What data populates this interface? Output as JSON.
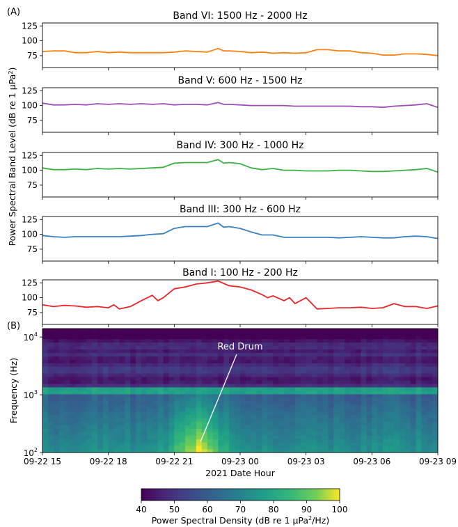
{
  "panel_labels": {
    "a": "(A)",
    "b": "(B)"
  },
  "shared_ylabel_prefix": "Power Spectral Band Level (dB re 1 ",
  "shared_ylabel_unit": "μPa",
  "shared_ylabel_suffix": ")",
  "chart_data": [
    {
      "type": "line",
      "title": "Band VI: 1500 Hz - 2000 Hz",
      "color": "#ff7f0e",
      "ylim": [
        55,
        130
      ],
      "yticks": [
        75,
        100,
        125
      ],
      "xlim": [
        0,
        18
      ],
      "x": [
        0,
        0.5,
        1,
        1.5,
        2,
        2.5,
        3,
        3.5,
        4,
        4.5,
        5,
        5.5,
        6,
        6.5,
        7,
        7.5,
        8,
        8.25,
        8.5,
        9,
        9.5,
        10,
        10.5,
        11,
        11.5,
        12,
        12.5,
        13,
        13.5,
        14,
        14.5,
        15,
        15.5,
        16,
        16.5,
        17,
        17.5,
        18
      ],
      "y": [
        82,
        83,
        83,
        80,
        80,
        82,
        80,
        81,
        80,
        80,
        80,
        80,
        81,
        83,
        82,
        81,
        87,
        83,
        83,
        82,
        80,
        81,
        79,
        80,
        79,
        80,
        85,
        85,
        83,
        83,
        80,
        79,
        76,
        76,
        78,
        78,
        77,
        75
      ]
    },
    {
      "type": "line",
      "title": "Band V: 600 Hz - 1500 Hz",
      "color": "#9b4fb5",
      "ylim": [
        55,
        130
      ],
      "yticks": [
        75,
        100,
        125
      ],
      "xlim": [
        0,
        18
      ],
      "x": [
        0,
        0.5,
        1,
        1.5,
        2,
        2.5,
        3,
        3.5,
        4,
        4.5,
        5,
        5.5,
        6,
        6.5,
        7,
        7.5,
        8,
        8.25,
        8.5,
        9,
        9.5,
        10,
        10.5,
        11,
        11.5,
        12,
        12.5,
        13,
        13.5,
        14,
        14.5,
        15,
        15.5,
        16,
        16.5,
        17,
        17.5,
        18
      ],
      "y": [
        104,
        101,
        101,
        102,
        101,
        103,
        102,
        103,
        102,
        103,
        102,
        103,
        101,
        102,
        102,
        101,
        105,
        102,
        102,
        101,
        100,
        100,
        100,
        100,
        99,
        99,
        99,
        99,
        99,
        99,
        98,
        98,
        97,
        99,
        100,
        101,
        103,
        97
      ]
    },
    {
      "type": "line",
      "title": "Band IV: 300 Hz - 1000 Hz",
      "color": "#3bb143",
      "ylim": [
        55,
        130
      ],
      "yticks": [
        75,
        100,
        125
      ],
      "xlim": [
        0,
        18
      ],
      "x": [
        0,
        0.5,
        1,
        1.5,
        2,
        2.5,
        3,
        3.5,
        4,
        4.5,
        5,
        5.5,
        6,
        6.5,
        7,
        7.5,
        8,
        8.25,
        8.5,
        9,
        9.5,
        10,
        10.5,
        11,
        11.5,
        12,
        12.5,
        13,
        13.5,
        14,
        14.5,
        15,
        15.5,
        16,
        16.5,
        17,
        17.5,
        18
      ],
      "y": [
        104,
        101,
        101,
        102,
        101,
        103,
        102,
        103,
        102,
        103,
        104,
        105,
        112,
        113,
        113,
        113,
        118,
        112,
        113,
        111,
        104,
        101,
        103,
        100,
        100,
        99,
        99,
        99,
        100,
        100,
        99,
        98,
        98,
        99,
        100,
        101,
        103,
        97
      ]
    },
    {
      "type": "line",
      "title": "Band III: 300 Hz - 600 Hz",
      "color": "#3a7fc1",
      "ylim": [
        55,
        130
      ],
      "yticks": [
        75,
        100,
        125
      ],
      "xlim": [
        0,
        18
      ],
      "x": [
        0,
        0.5,
        1,
        1.5,
        2,
        2.5,
        3,
        3.5,
        4,
        4.5,
        5,
        5.5,
        6,
        6.5,
        7,
        7.5,
        8,
        8.25,
        8.5,
        9,
        9.5,
        10,
        10.5,
        11,
        11.5,
        12,
        12.5,
        13,
        13.5,
        14,
        14.5,
        15,
        15.5,
        16,
        16.5,
        17,
        17.5,
        18
      ],
      "y": [
        98,
        96,
        95,
        96,
        96,
        96,
        96,
        96,
        97,
        98,
        100,
        101,
        110,
        113,
        113,
        113,
        119,
        112,
        113,
        110,
        104,
        99,
        99,
        95,
        95,
        95,
        95,
        95,
        94,
        95,
        96,
        95,
        94,
        94,
        96,
        97,
        96,
        93
      ]
    },
    {
      "type": "line",
      "title": "Band I: 100 Hz - 200 Hz",
      "color": "#e8262a",
      "ylim": [
        55,
        130
      ],
      "yticks": [
        75,
        100,
        125
      ],
      "xlim": [
        0,
        18
      ],
      "x": [
        0,
        0.5,
        1,
        1.5,
        2,
        2.5,
        3,
        3.25,
        3.5,
        4,
        4.5,
        5,
        5.25,
        5.5,
        6,
        6.5,
        7,
        7.5,
        8,
        8.5,
        9,
        9.5,
        10,
        10.25,
        10.5,
        11,
        11.25,
        11.5,
        12,
        12.5,
        13,
        13.5,
        14,
        14.5,
        15,
        15.5,
        16,
        16.5,
        17,
        17.5,
        18
      ],
      "y": [
        88,
        85,
        87,
        86,
        84,
        85,
        83,
        88,
        81,
        85,
        95,
        104,
        95,
        100,
        115,
        118,
        123,
        125,
        128,
        120,
        118,
        113,
        105,
        100,
        103,
        95,
        100,
        90,
        100,
        81,
        82,
        83,
        83,
        84,
        82,
        83,
        90,
        85,
        85,
        82,
        86
      ]
    },
    {
      "type": "heatmap",
      "xlabel": "2021 Date Hour",
      "ylabel": "Frequency (Hz)",
      "yscale": "log",
      "ylim": [
        100,
        14000
      ],
      "xlim": [
        0,
        18
      ],
      "xticks": [
        "09-22 15",
        "09-22 18",
        "09-22 21",
        "09-23 00",
        "09-23 03",
        "09-23 06",
        "09-23 09"
      ],
      "yticks": [
        "10",
        "10",
        "10"
      ],
      "ytick_exponents": [
        "2",
        "3",
        "4"
      ],
      "colorbar": {
        "label_prefix": "Power Spectral Density (dB re 1 ",
        "label_unit": "μPa",
        "label_suffix": "/Hz)",
        "range": [
          40,
          100
        ],
        "ticks": [
          "40",
          "50",
          "60",
          "70",
          "80",
          "90",
          "100"
        ]
      },
      "annotation": {
        "text": "Red Drum",
        "x": 7.2,
        "freq": 155
      }
    }
  ]
}
